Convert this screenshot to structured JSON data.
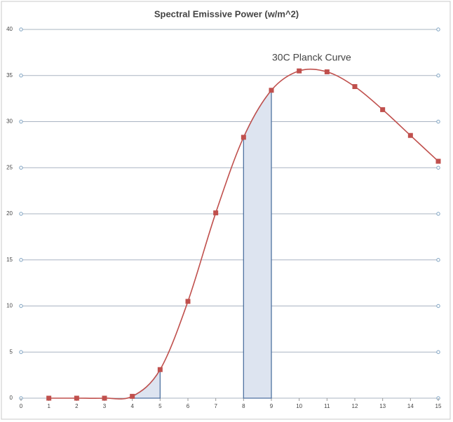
{
  "chart_data": {
    "type": "line",
    "title": "Spectral Emissive Power (w/m^2)",
    "annotation": "30C Planck Curve",
    "x": [
      1,
      2,
      3,
      4,
      5,
      6,
      7,
      8,
      9,
      10,
      11,
      12,
      13,
      14,
      15
    ],
    "series": [
      {
        "color": "#c0504d",
        "values": [
          0,
          0,
          0,
          0.2,
          3.1,
          10.5,
          20.1,
          28.3,
          33.4,
          35.5,
          35.4,
          33.8,
          31.3,
          28.5,
          25.7
        ]
      }
    ],
    "shaded_ranges": [
      [
        4,
        5
      ],
      [
        8,
        9
      ]
    ],
    "shade_color": "#dde4f0",
    "xlim": [
      0,
      15
    ],
    "xticks": [
      0,
      1,
      2,
      3,
      4,
      5,
      6,
      7,
      8,
      9,
      10,
      11,
      12,
      13,
      14,
      15
    ],
    "ylim": [
      0,
      40
    ],
    "yticks": [
      0,
      5,
      10,
      15,
      20,
      25,
      30,
      35,
      40
    ],
    "grid": true
  }
}
